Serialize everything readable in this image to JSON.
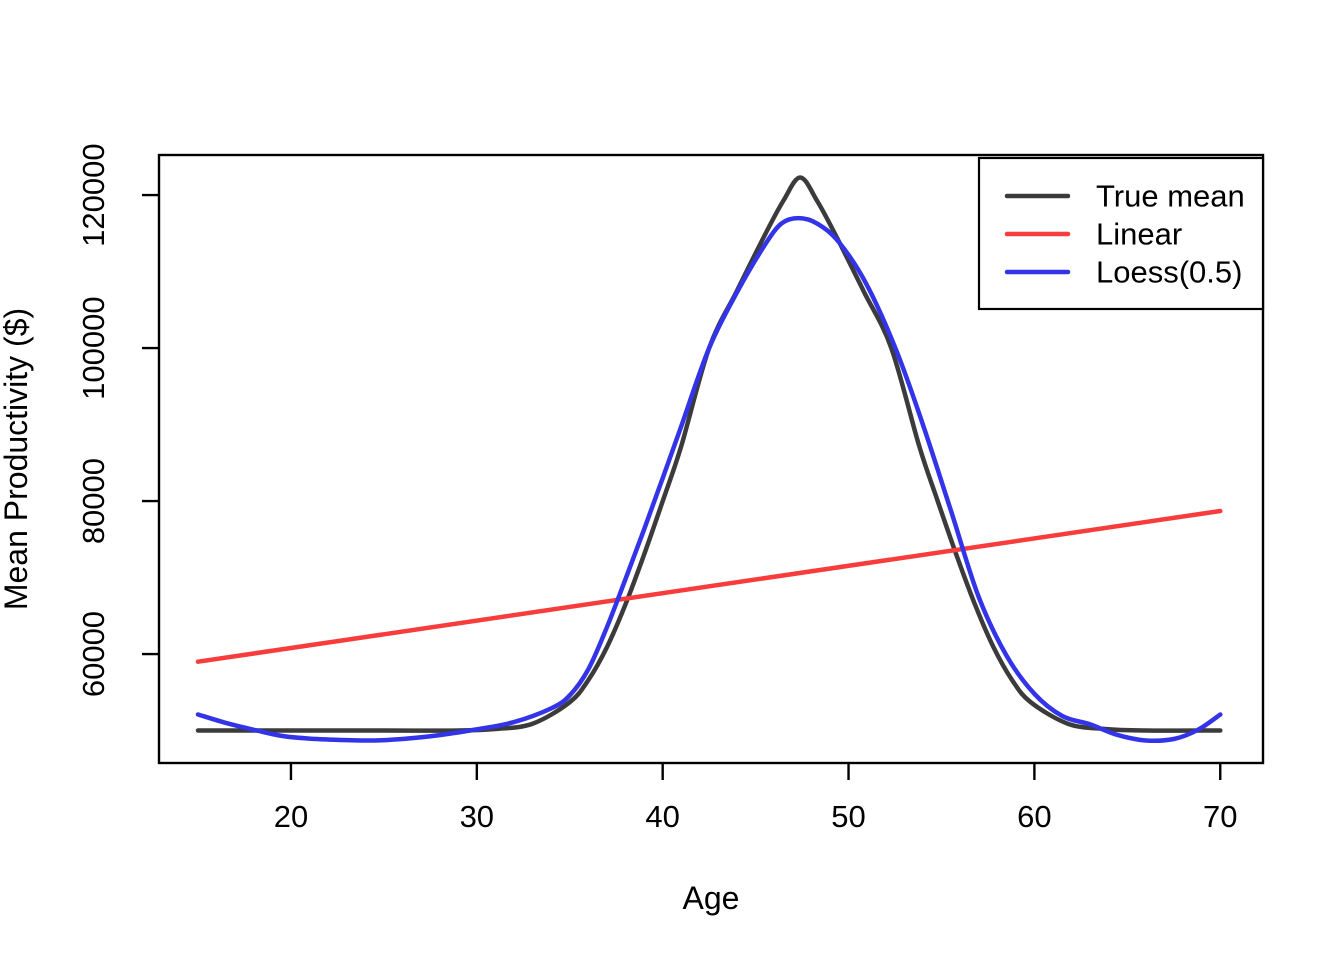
{
  "chart_data": {
    "type": "line",
    "title": "",
    "xlabel": "Age",
    "ylabel": "Mean Productivity ($)",
    "x_ticks": [
      20,
      30,
      40,
      50,
      60,
      70
    ],
    "y_ticks": [
      60000,
      80000,
      100000,
      120000
    ],
    "x_range": [
      12.9,
      72.3
    ],
    "y_range": [
      45756,
      125244
    ],
    "grid": false,
    "axis_color": "#000000",
    "legend_position": "top-right",
    "series": [
      {
        "name": "True mean",
        "color": "#3b3b3b",
        "line_width": 4.5,
        "smooth": true,
        "points": [
          [
            15,
            50000
          ],
          [
            20,
            50000
          ],
          [
            25,
            50000
          ],
          [
            29,
            50000
          ],
          [
            31,
            50200
          ],
          [
            33,
            50900
          ],
          [
            35,
            53700
          ],
          [
            36,
            56600
          ],
          [
            37,
            60900
          ],
          [
            38,
            66500
          ],
          [
            39,
            73000
          ],
          [
            40,
            80000
          ],
          [
            41,
            87200
          ],
          [
            42.5,
            100000
          ],
          [
            44,
            107500
          ],
          [
            45.5,
            114800
          ],
          [
            46.5,
            119300
          ],
          [
            47.4,
            122300
          ],
          [
            48.3,
            119300
          ],
          [
            49.3,
            114800
          ],
          [
            50.8,
            107500
          ],
          [
            52.3,
            100000
          ],
          [
            53.8,
            87200
          ],
          [
            54.8,
            80000
          ],
          [
            55.8,
            73000
          ],
          [
            56.8,
            66500
          ],
          [
            57.8,
            60900
          ],
          [
            58.8,
            56600
          ],
          [
            59.8,
            53700
          ],
          [
            61.8,
            50900
          ],
          [
            63.8,
            50200
          ],
          [
            66,
            50000
          ],
          [
            70,
            50000
          ]
        ]
      },
      {
        "name": "Linear",
        "color": "#f83c3c",
        "line_width": 4.5,
        "smooth": false,
        "points": [
          [
            15,
            59000
          ],
          [
            70,
            78700
          ]
        ]
      },
      {
        "name": "Loess(0.5)",
        "color": "#3333e8",
        "line_width": 4.5,
        "smooth": true,
        "points": [
          [
            15,
            52100
          ],
          [
            16.5,
            51000
          ],
          [
            18,
            50100
          ],
          [
            19.5,
            49300
          ],
          [
            21,
            48950
          ],
          [
            23,
            48750
          ],
          [
            24.5,
            48700
          ],
          [
            26,
            48900
          ],
          [
            28,
            49400
          ],
          [
            30,
            50150
          ],
          [
            32,
            51100
          ],
          [
            34,
            52900
          ],
          [
            35,
            54600
          ],
          [
            36,
            58000
          ],
          [
            37,
            63500
          ],
          [
            38,
            69800
          ],
          [
            39,
            76300
          ],
          [
            40,
            83000
          ],
          [
            41,
            89800
          ],
          [
            42.5,
            100000
          ],
          [
            44,
            107300
          ],
          [
            45.5,
            113500
          ],
          [
            46.4,
            116300
          ],
          [
            47.3,
            117000
          ],
          [
            48.3,
            116300
          ],
          [
            49.5,
            113800
          ],
          [
            51,
            108200
          ],
          [
            52.6,
            99500
          ],
          [
            54,
            90000
          ],
          [
            55.5,
            78800
          ],
          [
            57,
            67500
          ],
          [
            58.5,
            59800
          ],
          [
            60,
            54800
          ],
          [
            61.5,
            51900
          ],
          [
            63,
            50800
          ],
          [
            64.5,
            49400
          ],
          [
            66,
            48700
          ],
          [
            67.5,
            48900
          ],
          [
            68.8,
            50100
          ],
          [
            70,
            52100
          ]
        ]
      }
    ],
    "legend": {
      "entries": [
        "True mean",
        "Linear",
        "Loess(0.5)"
      ]
    }
  }
}
